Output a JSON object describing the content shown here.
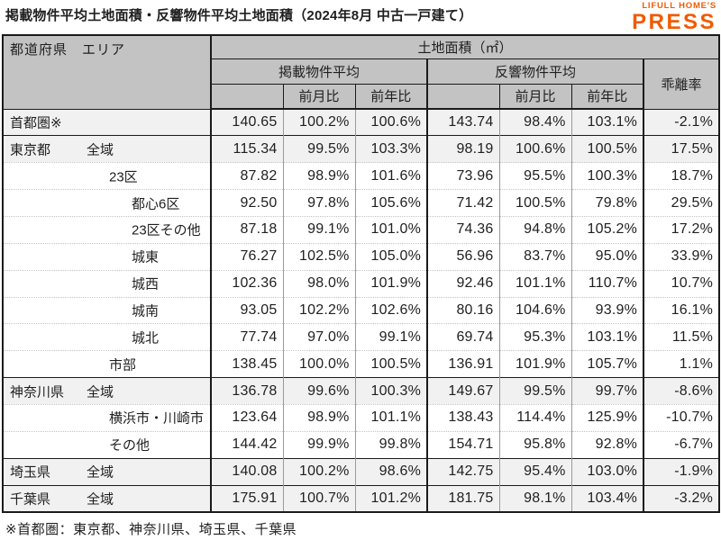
{
  "page": {
    "title": "掲載物件平均土地面積・反響物件平均土地面積（2024年8月 中古一戸建て）",
    "footnote": "※首都圏：東京都、神奈川県、埼玉県、千葉県"
  },
  "logo": {
    "line1": "LIFULL HOME'S",
    "line2": "PRESS",
    "color": "#f15a00"
  },
  "colors": {
    "header_bg": "#c3c3c3",
    "shaded_row_bg": "#f1f1f1",
    "border_dark": "#1a1a1a",
    "logo_orange": "#f15a00"
  },
  "table": {
    "corner_header": "都道府県　エリア",
    "unit_header": "土地面積（㎡）",
    "group_listing": "掲載物件平均",
    "group_response": "反響物件平均",
    "group_deviation": "乖離率",
    "sub_mom": "前月比",
    "sub_yoy": "前年比",
    "column_keys": [
      "listing-avg",
      "listing-mom",
      "listing-yoy",
      "response-avg",
      "response-mom",
      "response-yoy",
      "deviation-rate"
    ],
    "rows": [
      {
        "pref": "首都圏※",
        "area": "",
        "indent": 0,
        "shaded": true,
        "group_start": false,
        "values": [
          "140.65",
          "100.2%",
          "100.6%",
          "143.74",
          "98.4%",
          "103.1%",
          "-2.1%"
        ]
      },
      {
        "pref": "東京都",
        "area": "全域",
        "indent": 1,
        "shaded": true,
        "group_start": true,
        "values": [
          "115.34",
          "99.5%",
          "103.3%",
          "98.19",
          "100.6%",
          "100.5%",
          "17.5%"
        ]
      },
      {
        "pref": "",
        "area": "23区",
        "indent": 2,
        "shaded": false,
        "group_start": false,
        "values": [
          "87.82",
          "98.9%",
          "101.6%",
          "73.96",
          "95.5%",
          "100.3%",
          "18.7%"
        ]
      },
      {
        "pref": "",
        "area": "都心6区",
        "indent": 3,
        "shaded": false,
        "group_start": false,
        "values": [
          "92.50",
          "97.8%",
          "105.6%",
          "71.42",
          "100.5%",
          "79.8%",
          "29.5%"
        ]
      },
      {
        "pref": "",
        "area": "23区その他",
        "indent": 3,
        "shaded": false,
        "group_start": false,
        "values": [
          "87.18",
          "99.1%",
          "101.0%",
          "74.36",
          "94.8%",
          "105.2%",
          "17.2%"
        ]
      },
      {
        "pref": "",
        "area": "城東",
        "indent": 3,
        "shaded": false,
        "group_start": false,
        "values": [
          "76.27",
          "102.5%",
          "105.0%",
          "56.96",
          "83.7%",
          "95.0%",
          "33.9%"
        ]
      },
      {
        "pref": "",
        "area": "城西",
        "indent": 3,
        "shaded": false,
        "group_start": false,
        "values": [
          "102.36",
          "98.0%",
          "101.9%",
          "92.46",
          "101.1%",
          "110.7%",
          "10.7%"
        ]
      },
      {
        "pref": "",
        "area": "城南",
        "indent": 3,
        "shaded": false,
        "group_start": false,
        "values": [
          "93.05",
          "102.2%",
          "102.6%",
          "80.16",
          "104.6%",
          "93.9%",
          "16.1%"
        ]
      },
      {
        "pref": "",
        "area": "城北",
        "indent": 3,
        "shaded": false,
        "group_start": false,
        "values": [
          "77.74",
          "97.0%",
          "99.1%",
          "69.74",
          "95.3%",
          "103.1%",
          "11.5%"
        ]
      },
      {
        "pref": "",
        "area": "市部",
        "indent": 2,
        "shaded": false,
        "group_start": false,
        "values": [
          "138.45",
          "100.0%",
          "100.5%",
          "136.91",
          "101.9%",
          "105.7%",
          "1.1%"
        ]
      },
      {
        "pref": "神奈川県",
        "area": "全域",
        "indent": 1,
        "shaded": true,
        "group_start": true,
        "values": [
          "136.78",
          "99.6%",
          "100.3%",
          "149.67",
          "99.5%",
          "99.7%",
          "-8.6%"
        ]
      },
      {
        "pref": "",
        "area": "横浜市・川崎市",
        "indent": 2,
        "shaded": false,
        "group_start": false,
        "values": [
          "123.64",
          "98.9%",
          "101.1%",
          "138.43",
          "114.4%",
          "125.9%",
          "-10.7%"
        ]
      },
      {
        "pref": "",
        "area": "その他",
        "indent": 2,
        "shaded": false,
        "group_start": false,
        "values": [
          "144.42",
          "99.9%",
          "99.8%",
          "154.71",
          "95.8%",
          "92.8%",
          "-6.7%"
        ]
      },
      {
        "pref": "埼玉県",
        "area": "全域",
        "indent": 1,
        "shaded": true,
        "group_start": true,
        "values": [
          "140.08",
          "100.2%",
          "98.6%",
          "142.75",
          "95.4%",
          "103.0%",
          "-1.9%"
        ]
      },
      {
        "pref": "千葉県",
        "area": "全域",
        "indent": 1,
        "shaded": true,
        "group_start": true,
        "values": [
          "175.91",
          "100.7%",
          "101.2%",
          "181.75",
          "98.1%",
          "103.4%",
          "-3.2%"
        ]
      }
    ]
  }
}
